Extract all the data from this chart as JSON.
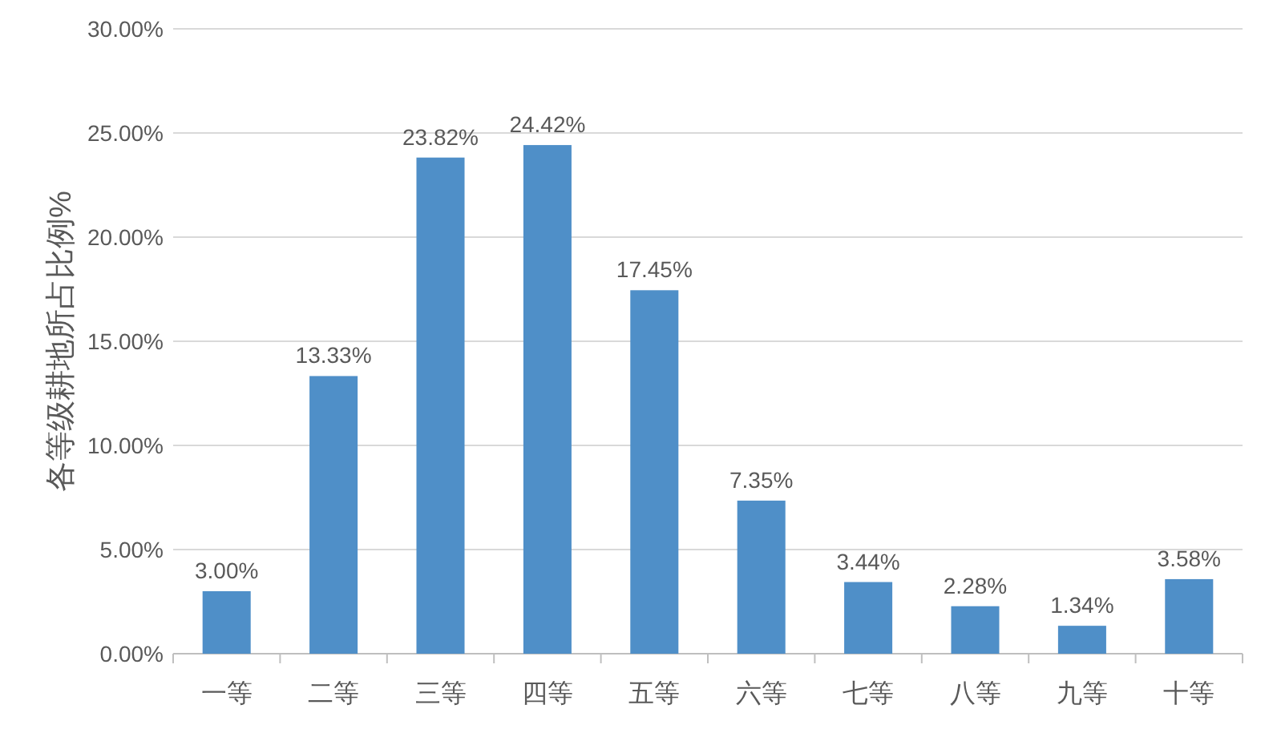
{
  "chart_data": {
    "type": "bar",
    "ylabel": "各等级耕地所占比例%",
    "categories": [
      "一等",
      "二等",
      "三等",
      "四等",
      "五等",
      "六等",
      "七等",
      "八等",
      "九等",
      "十等"
    ],
    "values": [
      3.0,
      13.33,
      23.82,
      24.42,
      17.45,
      7.35,
      3.44,
      2.28,
      1.34,
      3.58
    ],
    "value_labels": [
      "3.00%",
      "13.33%",
      "23.82%",
      "24.42%",
      "17.45%",
      "7.35%",
      "3.44%",
      "2.28%",
      "1.34%",
      "3.58%"
    ],
    "color": "#4f8fc8",
    "ylim": [
      0,
      30
    ],
    "yticks": [
      {
        "value": 0,
        "label": "0.00%"
      },
      {
        "value": 5,
        "label": "5.00%"
      },
      {
        "value": 10,
        "label": "10.00%"
      },
      {
        "value": 15,
        "label": "15.00%"
      },
      {
        "value": 20,
        "label": "20.00%"
      },
      {
        "value": 25,
        "label": "25.00%"
      },
      {
        "value": 30,
        "label": "30.00%"
      }
    ],
    "grid": "y"
  }
}
